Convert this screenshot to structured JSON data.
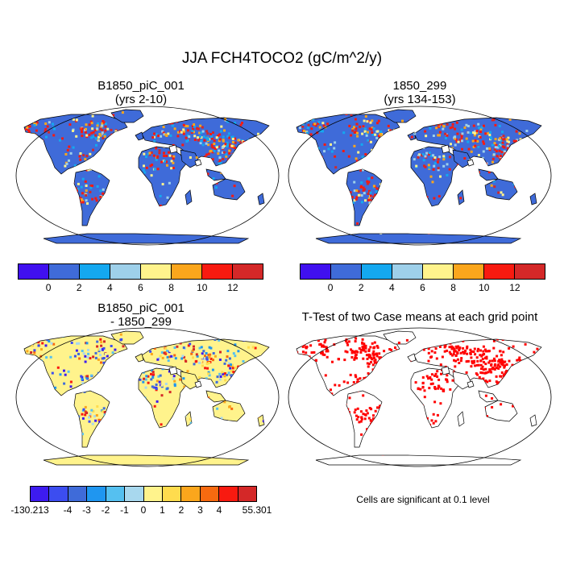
{
  "title": "JJA FCH4TOCO2 (gC/m^2/y)",
  "panels": [
    {
      "title_line1": "B1850_piC_001",
      "title_line2": "(yrs 2-10)"
    },
    {
      "title_line1": "1850_299",
      "title_line2": "(yrs 134-153)"
    },
    {
      "title_line1": "B1850_piC_001",
      "title_line2": "- 1850_299"
    },
    {
      "title_line1": "T-Test of two Case means at each grid point",
      "title_line2": ""
    }
  ],
  "note": "Cells are significant at 0.1 level",
  "colorbars": {
    "absolute": {
      "colors": [
        "#4010f0",
        "#3f6bd9",
        "#14a8f0",
        "#9ed0ea",
        "#fff38c",
        "#fba61c",
        "#f81a10",
        "#d42828"
      ],
      "labels": [
        "0",
        "2",
        "4",
        "6",
        "8",
        "10",
        "12"
      ]
    },
    "difference": {
      "colors": [
        "#3d1bf0",
        "#3c4df0",
        "#3f6bd9",
        "#1f96f0",
        "#55c0f0",
        "#a8d8ee",
        "#fff38c",
        "#ffdc4e",
        "#fba61c",
        "#f76a10",
        "#f81a10",
        "#d42828"
      ],
      "labels": [
        "-130.213",
        "-4",
        "-3",
        "-2",
        "-1",
        "0",
        "1",
        "2",
        "3",
        "4",
        "55.301"
      ]
    }
  },
  "colors": {
    "land_mean": "#3f6bd9",
    "land_diff": "#fff38c",
    "significant": "#ff0000",
    "outline": "#000000"
  }
}
